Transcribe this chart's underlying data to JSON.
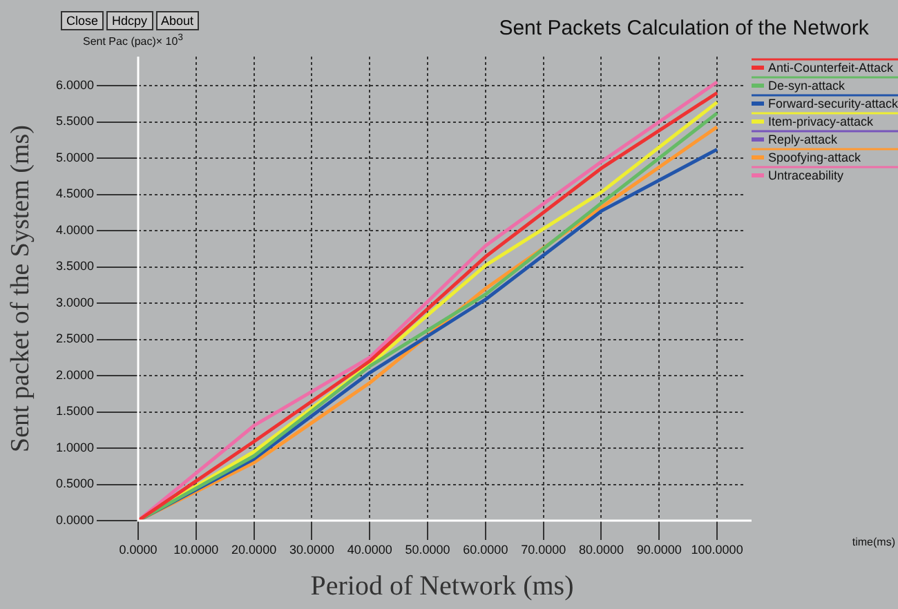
{
  "chart_data": {
    "type": "line",
    "title": "Sent Packets Calculation of the Network",
    "xlabel": "Period of Network (ms)",
    "ylabel": "Sent packet of the System (ms)",
    "annotations": [
      "Close",
      "Hdcpy",
      "About",
      "Sent Pac (pac)× 10$^{3}$",
      "time(ms)"
    ],
    "x": [
      0,
      20,
      40,
      60,
      80,
      100
    ],
    "series": [
      {
        "name": "Anti-Counterfeit-Attack",
        "color": "#ee3333",
        "values": [
          0,
          1.09,
          2.2,
          3.64,
          4.86,
          5.9
        ]
      },
      {
        "name": "De-syn-attack",
        "color": "#66bb66",
        "values": [
          0,
          0.89,
          2.13,
          3.12,
          4.38,
          5.62
        ]
      },
      {
        "name": "Forward-security-attack",
        "color": "#2255aa",
        "values": [
          0,
          0.85,
          2.04,
          3.05,
          4.27,
          5.12
        ]
      },
      {
        "name": "Item-privacy-attack",
        "color": "#eeee33",
        "values": [
          0,
          0.95,
          2.15,
          3.52,
          4.53,
          5.77
        ]
      },
      {
        "name": "Reply-attack",
        "color": "#7755bb",
        "values": [
          null,
          null,
          null,
          null,
          null,
          null
        ]
      },
      {
        "name": "Spoofying-attack",
        "color": "#ff9933",
        "values": [
          0,
          0.8,
          1.9,
          3.2,
          4.32,
          5.43
        ]
      },
      {
        "name": "Untraceability",
        "color": "#ee6fa8",
        "values": [
          0,
          1.31,
          2.25,
          3.79,
          4.95,
          6.05
        ]
      }
    ],
    "xlim": [
      0,
      105
    ],
    "ylim": [
      0,
      6.4
    ],
    "xticks": [
      {
        "value": 0,
        "label": "0.0000"
      },
      {
        "value": 10,
        "label": "10.0000"
      },
      {
        "value": 20,
        "label": "20.0000"
      },
      {
        "value": 30,
        "label": "30.0000"
      },
      {
        "value": 40,
        "label": "40.0000"
      },
      {
        "value": 50,
        "label": "50.0000"
      },
      {
        "value": 60,
        "label": "60.0000"
      },
      {
        "value": 70,
        "label": "70.0000"
      },
      {
        "value": 80,
        "label": "80.0000"
      },
      {
        "value": 90,
        "label": "90.0000"
      },
      {
        "value": 100,
        "label": "100.0000"
      }
    ],
    "yticks": [
      {
        "value": 0,
        "label": "0.0000"
      },
      {
        "value": 0.5,
        "label": "0.5000"
      },
      {
        "value": 1,
        "label": "1.0000"
      },
      {
        "value": 1.5,
        "label": "1.5000"
      },
      {
        "value": 2,
        "label": "2.0000"
      },
      {
        "value": 2.5,
        "label": "2.5000"
      },
      {
        "value": 3,
        "label": "3.0000"
      },
      {
        "value": 3.5,
        "label": "3.5000"
      },
      {
        "value": 4,
        "label": "4.0000"
      },
      {
        "value": 4.5,
        "label": "4.5000"
      },
      {
        "value": 5,
        "label": "5.0000"
      },
      {
        "value": 5.5,
        "label": "5.5000"
      },
      {
        "value": 6,
        "label": "6.0000"
      }
    ],
    "grid": true,
    "legend": "right",
    "marker": "none",
    "line_style": "solid"
  }
}
